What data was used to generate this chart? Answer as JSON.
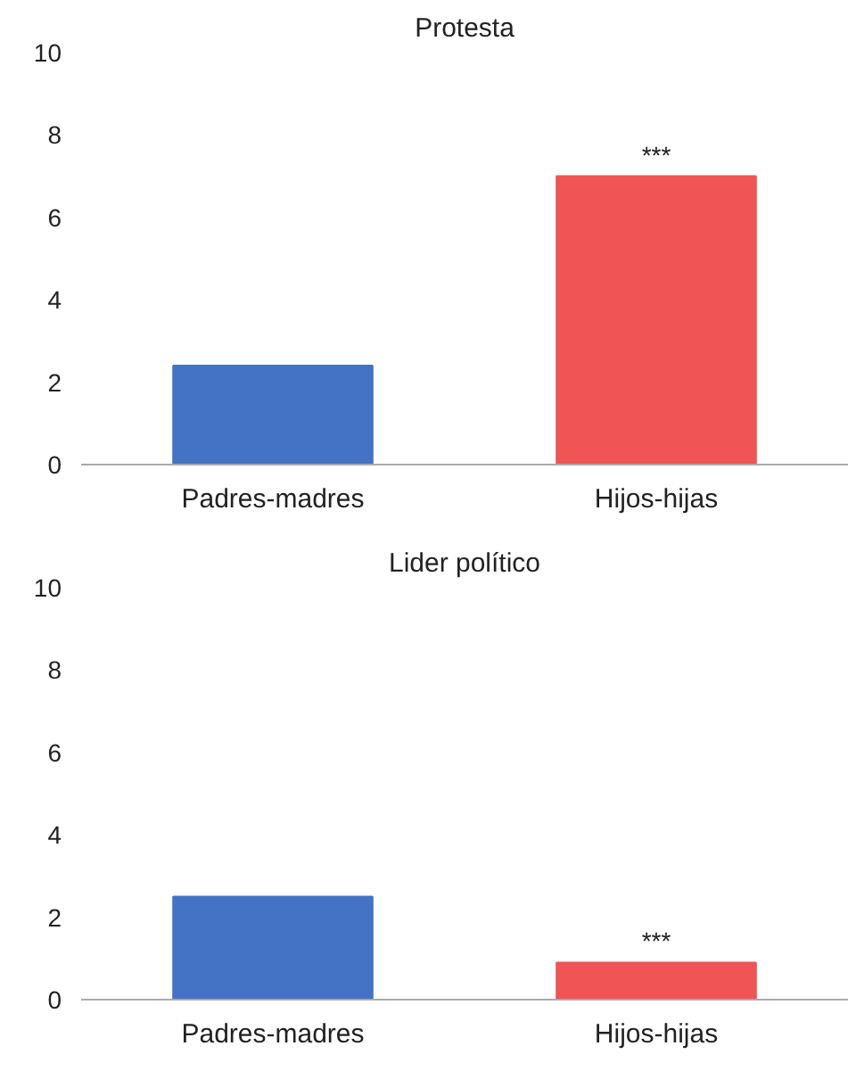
{
  "chart_data": [
    {
      "type": "bar",
      "title": "Protesta",
      "categories": [
        "Padres-madres",
        "Hijos-hijas"
      ],
      "values": [
        2.4,
        7.0
      ],
      "colors": [
        "#4472c4",
        "#f05454"
      ],
      "ylim": [
        0,
        10
      ],
      "yticks": [
        0,
        2,
        4,
        6,
        8,
        10
      ],
      "grid": false,
      "annotations": [
        {
          "text": "***",
          "x": "Hijos-hijas",
          "y": 7.0
        }
      ]
    },
    {
      "type": "bar",
      "title": "Lider político",
      "categories": [
        "Padres-madres",
        "Hijos-hijas"
      ],
      "values": [
        2.5,
        0.9
      ],
      "colors": [
        "#4472c4",
        "#f05454"
      ],
      "ylim": [
        0,
        10
      ],
      "yticks": [
        0,
        2,
        4,
        6,
        8,
        10
      ],
      "grid": false,
      "annotations": [
        {
          "text": "***",
          "x": "Hijos-hijas",
          "y": 0.9
        }
      ]
    }
  ]
}
